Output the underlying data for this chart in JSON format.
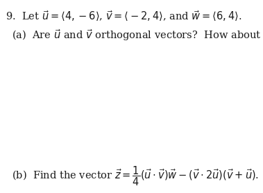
{
  "background_color": "#ffffff",
  "line1": "9.  Let $\\vec{u} = \\langle 4, -6 \\rangle$, $\\vec{v} = \\langle -2, 4 \\rangle$, and $\\vec{w} = \\langle 6, 4 \\rangle$.",
  "line2": "(a)  Are $\\vec{u}$ and $\\vec{v}$ orthogonal vectors?  How about $\\vec{u}$ and $\\vec{w}$?",
  "line3": "(b)  Find the vector $\\vec{z} = \\dfrac{1}{4}(\\vec{u} \\cdot \\vec{v})\\vec{w} - (\\vec{v} \\cdot 2\\vec{u})(\\vec{v} + \\vec{u})$.",
  "text_color": "#1a1a1a",
  "fontsize_main": 10.5,
  "fontsize_label": 10.5
}
